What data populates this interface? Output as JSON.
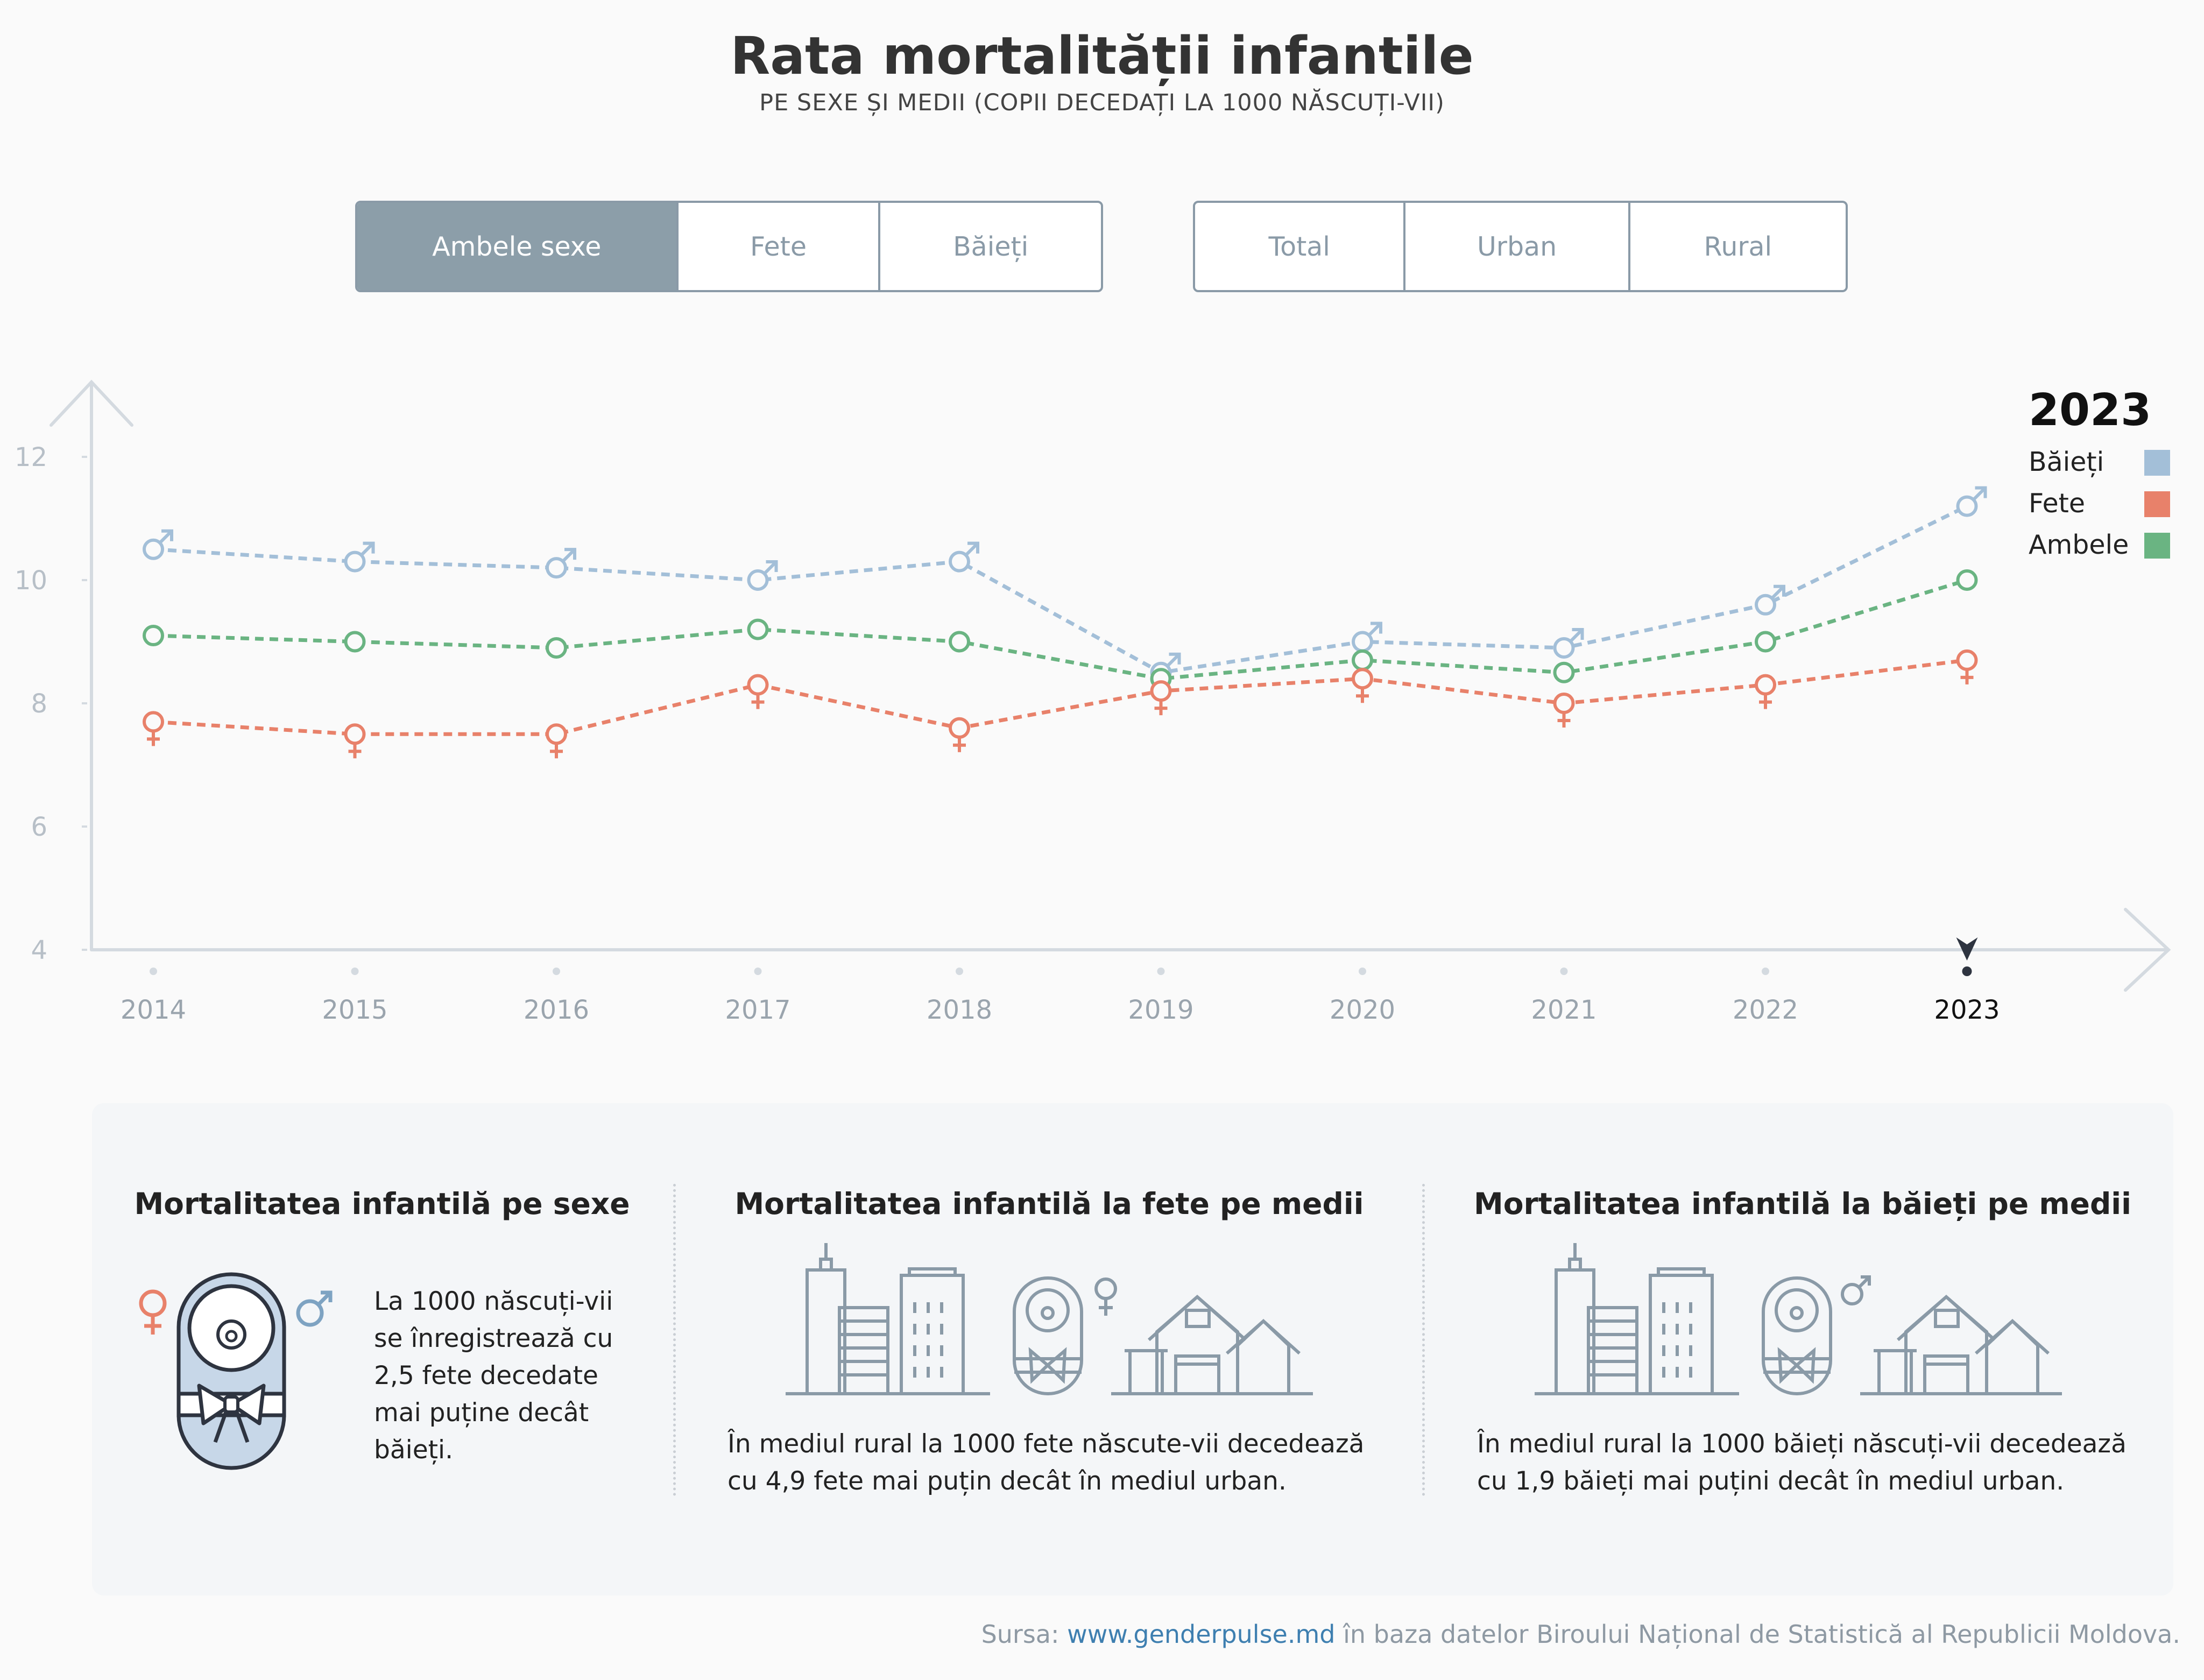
{
  "header": {
    "title": "Rata mortalității infantile",
    "subtitle": "PE SEXE ȘI MEDII (COPII DECEDAȚI LA 1000 NĂSCUȚI-VII)"
  },
  "sex_filter": {
    "options": [
      "Ambele sexe",
      "Fete",
      "Băieți"
    ],
    "selected": "Ambele sexe"
  },
  "area_filter": {
    "options": [
      "Total",
      "Urban",
      "Rural"
    ],
    "selected": null
  },
  "legend": {
    "year": "2023",
    "items": [
      {
        "label": "Băieți",
        "color": "#a3bfd8"
      },
      {
        "label": "Fete",
        "color": "#e8816a"
      },
      {
        "label": "Ambele",
        "color": "#6ab482"
      }
    ]
  },
  "chart_data": {
    "type": "line",
    "title": "Rata mortalității infantile",
    "subtitle": "PE SEXE ȘI MEDII (COPII DECEDAȚI LA 1000 NĂSCUȚI-VII)",
    "categories": [
      "2014",
      "2015",
      "2016",
      "2017",
      "2018",
      "2019",
      "2020",
      "2021",
      "2022",
      "2023"
    ],
    "highlighted_category": "2023",
    "yticks": [
      4,
      6,
      8,
      10,
      12
    ],
    "ylim": [
      4,
      13
    ],
    "grid": false,
    "legend_position": "top-right",
    "line_style": "dashed",
    "series": [
      {
        "name": "Băieți",
        "color": "#a3bfd8",
        "marker": "male-symbol",
        "values": [
          10.5,
          10.3,
          10.2,
          10.0,
          10.3,
          8.5,
          9.0,
          8.9,
          9.6,
          11.2
        ]
      },
      {
        "name": "Ambele",
        "color": "#6ab482",
        "marker": "circle",
        "values": [
          9.1,
          9.0,
          8.9,
          9.2,
          9.0,
          8.4,
          8.7,
          8.5,
          9.0,
          10.0
        ]
      },
      {
        "name": "Fete",
        "color": "#e8816a",
        "marker": "female-symbol",
        "values": [
          7.7,
          7.5,
          7.5,
          8.3,
          7.6,
          8.2,
          8.4,
          8.0,
          8.3,
          8.7
        ]
      }
    ]
  },
  "cards": [
    {
      "title": "Mortalitatea infantilă pe sexe",
      "text_lines": [
        "La 1000 născuți-vii",
        "se înregistrează cu",
        "2,5 fete decedate",
        "mai puține decât",
        "băieți."
      ]
    },
    {
      "title": "Mortalitatea infantilă la fete pe medii",
      "text_lines": [
        "În mediul rural la 1000 fete născute-vii decedează",
        "cu 4,9 fete mai puțin decât în mediul urban."
      ]
    },
    {
      "title": "Mortalitatea infantilă la băieți pe medii",
      "text_lines": [
        "În mediul rural la 1000 băieți născuți-vii decedează",
        "cu 1,9 băieți mai puțini decât în mediul urban."
      ]
    }
  ],
  "footer": {
    "source_prefix": "Sursa: ",
    "source_link": "www.genderpulse.md",
    "source_suffix": " în baza datelor Biroului Național de Statistică al Republicii Moldova."
  }
}
